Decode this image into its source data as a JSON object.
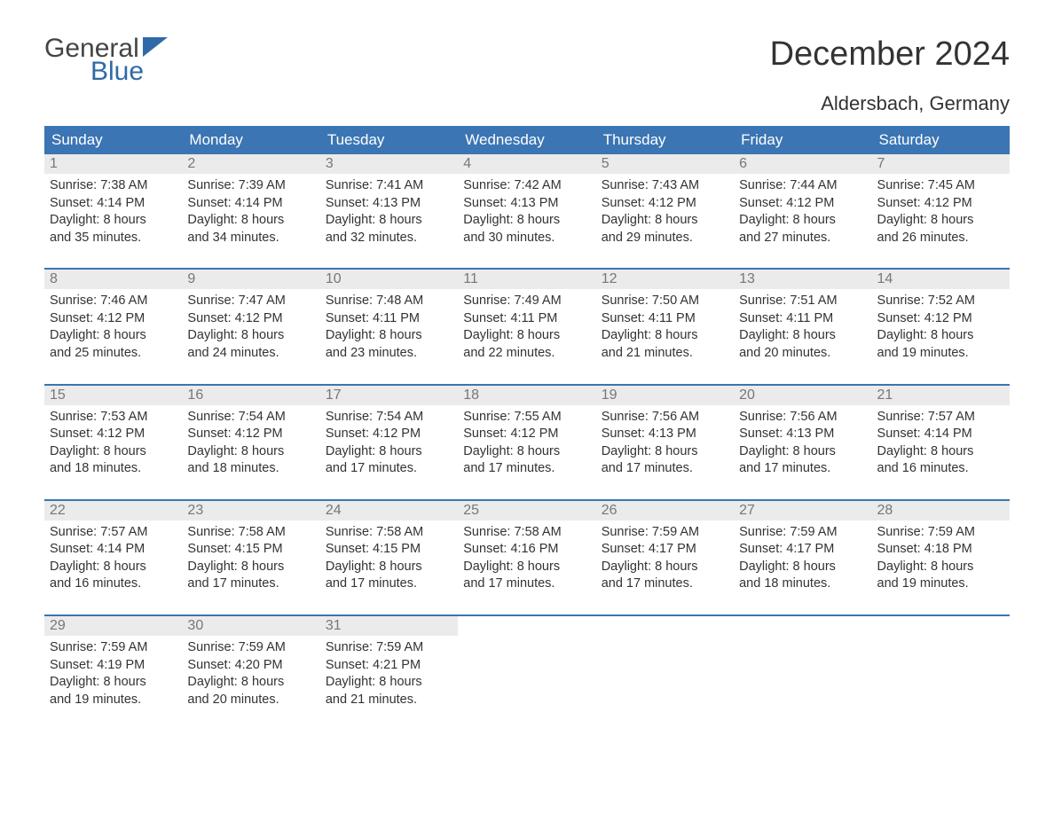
{
  "logo": {
    "text1": "General",
    "text2": "Blue",
    "triangle_color": "#2f6aa8"
  },
  "title": "December 2024",
  "location": "Aldersbach, Germany",
  "colors": {
    "header_bg": "#3b75b3",
    "header_text": "#ffffff",
    "daynum_bg": "#ebebeb",
    "daynum_text": "#777777",
    "body_text": "#333333",
    "rule": "#3b75b3",
    "page_bg": "#ffffff"
  },
  "typography": {
    "title_fontsize": 38,
    "location_fontsize": 22,
    "header_fontsize": 17,
    "daynum_fontsize": 16,
    "body_fontsize": 14.5,
    "font_family": "Arial"
  },
  "day_names": [
    "Sunday",
    "Monday",
    "Tuesday",
    "Wednesday",
    "Thursday",
    "Friday",
    "Saturday"
  ],
  "weeks": [
    [
      {
        "n": "1",
        "sr": "Sunrise: 7:38 AM",
        "ss": "Sunset: 4:14 PM",
        "d1": "Daylight: 8 hours",
        "d2": "and 35 minutes."
      },
      {
        "n": "2",
        "sr": "Sunrise: 7:39 AM",
        "ss": "Sunset: 4:14 PM",
        "d1": "Daylight: 8 hours",
        "d2": "and 34 minutes."
      },
      {
        "n": "3",
        "sr": "Sunrise: 7:41 AM",
        "ss": "Sunset: 4:13 PM",
        "d1": "Daylight: 8 hours",
        "d2": "and 32 minutes."
      },
      {
        "n": "4",
        "sr": "Sunrise: 7:42 AM",
        "ss": "Sunset: 4:13 PM",
        "d1": "Daylight: 8 hours",
        "d2": "and 30 minutes."
      },
      {
        "n": "5",
        "sr": "Sunrise: 7:43 AM",
        "ss": "Sunset: 4:12 PM",
        "d1": "Daylight: 8 hours",
        "d2": "and 29 minutes."
      },
      {
        "n": "6",
        "sr": "Sunrise: 7:44 AM",
        "ss": "Sunset: 4:12 PM",
        "d1": "Daylight: 8 hours",
        "d2": "and 27 minutes."
      },
      {
        "n": "7",
        "sr": "Sunrise: 7:45 AM",
        "ss": "Sunset: 4:12 PM",
        "d1": "Daylight: 8 hours",
        "d2": "and 26 minutes."
      }
    ],
    [
      {
        "n": "8",
        "sr": "Sunrise: 7:46 AM",
        "ss": "Sunset: 4:12 PM",
        "d1": "Daylight: 8 hours",
        "d2": "and 25 minutes."
      },
      {
        "n": "9",
        "sr": "Sunrise: 7:47 AM",
        "ss": "Sunset: 4:12 PM",
        "d1": "Daylight: 8 hours",
        "d2": "and 24 minutes."
      },
      {
        "n": "10",
        "sr": "Sunrise: 7:48 AM",
        "ss": "Sunset: 4:11 PM",
        "d1": "Daylight: 8 hours",
        "d2": "and 23 minutes."
      },
      {
        "n": "11",
        "sr": "Sunrise: 7:49 AM",
        "ss": "Sunset: 4:11 PM",
        "d1": "Daylight: 8 hours",
        "d2": "and 22 minutes."
      },
      {
        "n": "12",
        "sr": "Sunrise: 7:50 AM",
        "ss": "Sunset: 4:11 PM",
        "d1": "Daylight: 8 hours",
        "d2": "and 21 minutes."
      },
      {
        "n": "13",
        "sr": "Sunrise: 7:51 AM",
        "ss": "Sunset: 4:11 PM",
        "d1": "Daylight: 8 hours",
        "d2": "and 20 minutes."
      },
      {
        "n": "14",
        "sr": "Sunrise: 7:52 AM",
        "ss": "Sunset: 4:12 PM",
        "d1": "Daylight: 8 hours",
        "d2": "and 19 minutes."
      }
    ],
    [
      {
        "n": "15",
        "sr": "Sunrise: 7:53 AM",
        "ss": "Sunset: 4:12 PM",
        "d1": "Daylight: 8 hours",
        "d2": "and 18 minutes."
      },
      {
        "n": "16",
        "sr": "Sunrise: 7:54 AM",
        "ss": "Sunset: 4:12 PM",
        "d1": "Daylight: 8 hours",
        "d2": "and 18 minutes."
      },
      {
        "n": "17",
        "sr": "Sunrise: 7:54 AM",
        "ss": "Sunset: 4:12 PM",
        "d1": "Daylight: 8 hours",
        "d2": "and 17 minutes."
      },
      {
        "n": "18",
        "sr": "Sunrise: 7:55 AM",
        "ss": "Sunset: 4:12 PM",
        "d1": "Daylight: 8 hours",
        "d2": "and 17 minutes."
      },
      {
        "n": "19",
        "sr": "Sunrise: 7:56 AM",
        "ss": "Sunset: 4:13 PM",
        "d1": "Daylight: 8 hours",
        "d2": "and 17 minutes."
      },
      {
        "n": "20",
        "sr": "Sunrise: 7:56 AM",
        "ss": "Sunset: 4:13 PM",
        "d1": "Daylight: 8 hours",
        "d2": "and 17 minutes."
      },
      {
        "n": "21",
        "sr": "Sunrise: 7:57 AM",
        "ss": "Sunset: 4:14 PM",
        "d1": "Daylight: 8 hours",
        "d2": "and 16 minutes."
      }
    ],
    [
      {
        "n": "22",
        "sr": "Sunrise: 7:57 AM",
        "ss": "Sunset: 4:14 PM",
        "d1": "Daylight: 8 hours",
        "d2": "and 16 minutes."
      },
      {
        "n": "23",
        "sr": "Sunrise: 7:58 AM",
        "ss": "Sunset: 4:15 PM",
        "d1": "Daylight: 8 hours",
        "d2": "and 17 minutes."
      },
      {
        "n": "24",
        "sr": "Sunrise: 7:58 AM",
        "ss": "Sunset: 4:15 PM",
        "d1": "Daylight: 8 hours",
        "d2": "and 17 minutes."
      },
      {
        "n": "25",
        "sr": "Sunrise: 7:58 AM",
        "ss": "Sunset: 4:16 PM",
        "d1": "Daylight: 8 hours",
        "d2": "and 17 minutes."
      },
      {
        "n": "26",
        "sr": "Sunrise: 7:59 AM",
        "ss": "Sunset: 4:17 PM",
        "d1": "Daylight: 8 hours",
        "d2": "and 17 minutes."
      },
      {
        "n": "27",
        "sr": "Sunrise: 7:59 AM",
        "ss": "Sunset: 4:17 PM",
        "d1": "Daylight: 8 hours",
        "d2": "and 18 minutes."
      },
      {
        "n": "28",
        "sr": "Sunrise: 7:59 AM",
        "ss": "Sunset: 4:18 PM",
        "d1": "Daylight: 8 hours",
        "d2": "and 19 minutes."
      }
    ],
    [
      {
        "n": "29",
        "sr": "Sunrise: 7:59 AM",
        "ss": "Sunset: 4:19 PM",
        "d1": "Daylight: 8 hours",
        "d2": "and 19 minutes."
      },
      {
        "n": "30",
        "sr": "Sunrise: 7:59 AM",
        "ss": "Sunset: 4:20 PM",
        "d1": "Daylight: 8 hours",
        "d2": "and 20 minutes."
      },
      {
        "n": "31",
        "sr": "Sunrise: 7:59 AM",
        "ss": "Sunset: 4:21 PM",
        "d1": "Daylight: 8 hours",
        "d2": "and 21 minutes."
      },
      {
        "empty": true
      },
      {
        "empty": true
      },
      {
        "empty": true
      },
      {
        "empty": true
      }
    ]
  ]
}
